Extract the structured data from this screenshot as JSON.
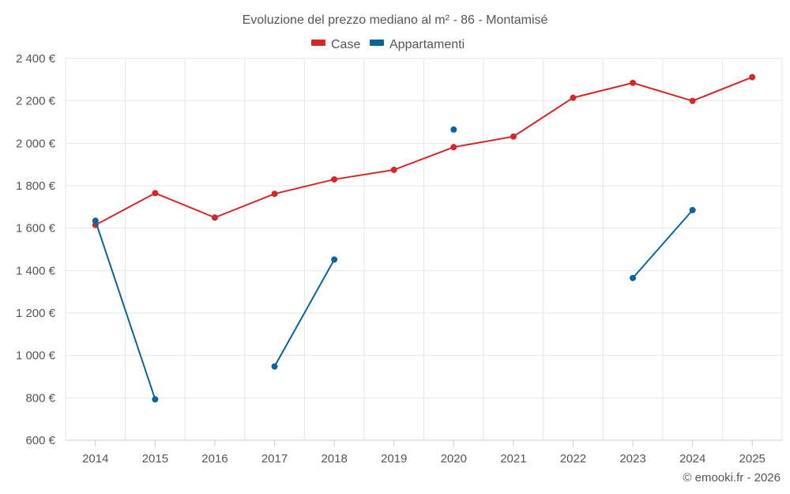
{
  "chart_data": {
    "type": "line",
    "title": "Evoluzione del prezzo mediano al m² - 86 - Montamisé",
    "categories": [
      "2014",
      "2015",
      "2016",
      "2017",
      "2018",
      "2019",
      "2020",
      "2021",
      "2022",
      "2023",
      "2024",
      "2025"
    ],
    "ylim": [
      600,
      2400
    ],
    "yticks": [
      600,
      800,
      1000,
      1200,
      1400,
      1600,
      1800,
      2000,
      2200,
      2400
    ],
    "ytick_labels": [
      "600 €",
      "800 €",
      "1 000 €",
      "1 200 €",
      "1 400 €",
      "1 600 €",
      "1 800 €",
      "2 000 €",
      "2 200 €",
      "2 400 €"
    ],
    "grid": true,
    "legend_position": "top-center",
    "series": [
      {
        "name": "Case",
        "color": "#d62728",
        "values": [
          1615,
          1765,
          1650,
          1762,
          1830,
          1875,
          1982,
          2032,
          2215,
          2285,
          2200,
          2312
        ]
      },
      {
        "name": "Appartamenti",
        "color": "#07659c",
        "values": [
          1635,
          793,
          null,
          948,
          1452,
          null,
          2065,
          null,
          null,
          1365,
          1685,
          null
        ]
      }
    ],
    "credit": "© emooki.fr - 2026"
  }
}
